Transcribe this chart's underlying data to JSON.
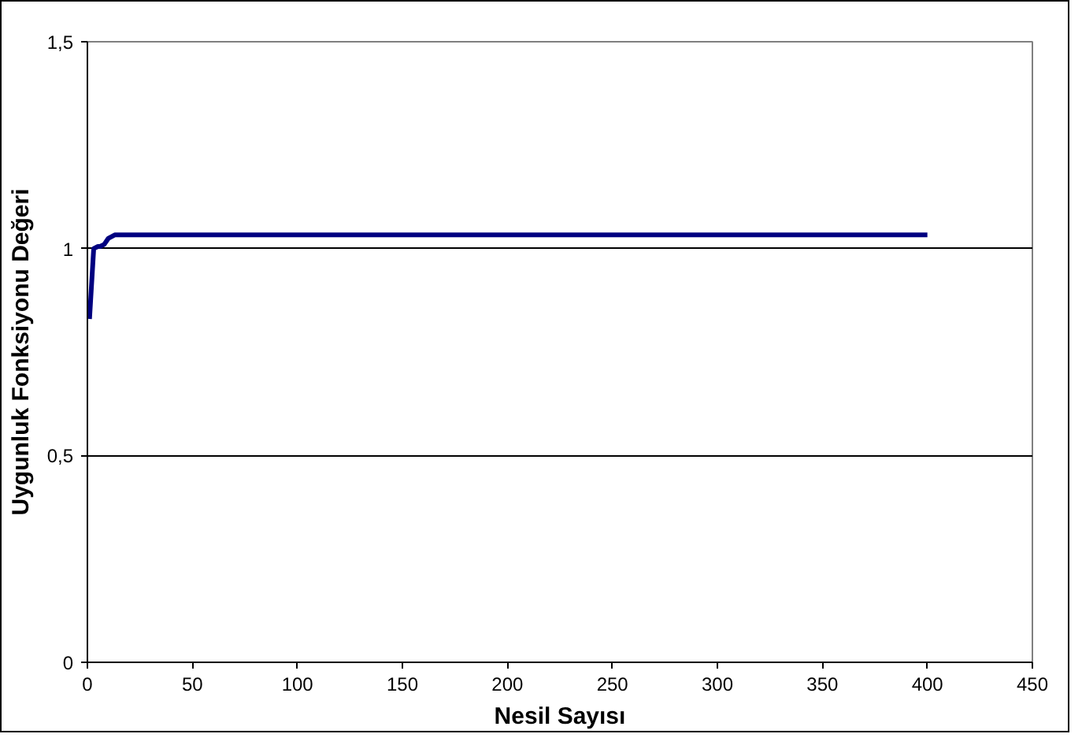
{
  "chart_data": {
    "type": "line",
    "xlabel": "Nesil Sayısı",
    "ylabel": "Uygunluk Fonksiyonu Değeri",
    "x": [
      1,
      3,
      5,
      6,
      8,
      10,
      13,
      50,
      100,
      200,
      300,
      400
    ],
    "series": [
      {
        "color": "#000080",
        "values": [
          0.83,
          1.0,
          1.005,
          1.005,
          1.01,
          1.025,
          1.033,
          1.033,
          1.033,
          1.033,
          1.033,
          1.033
        ]
      }
    ],
    "xlim": [
      0,
      450
    ],
    "xticks": [
      0,
      50,
      100,
      150,
      200,
      250,
      300,
      350,
      400,
      450
    ],
    "ylim": [
      0,
      1.5
    ],
    "yticks": [
      {
        "value": 0,
        "label": "0"
      },
      {
        "value": 0.5,
        "label": "0,5"
      },
      {
        "value": 1,
        "label": "1"
      },
      {
        "value": 1.5,
        "label": "1,5"
      }
    ],
    "grid": "y",
    "marker": "none",
    "line_style": "solid"
  }
}
